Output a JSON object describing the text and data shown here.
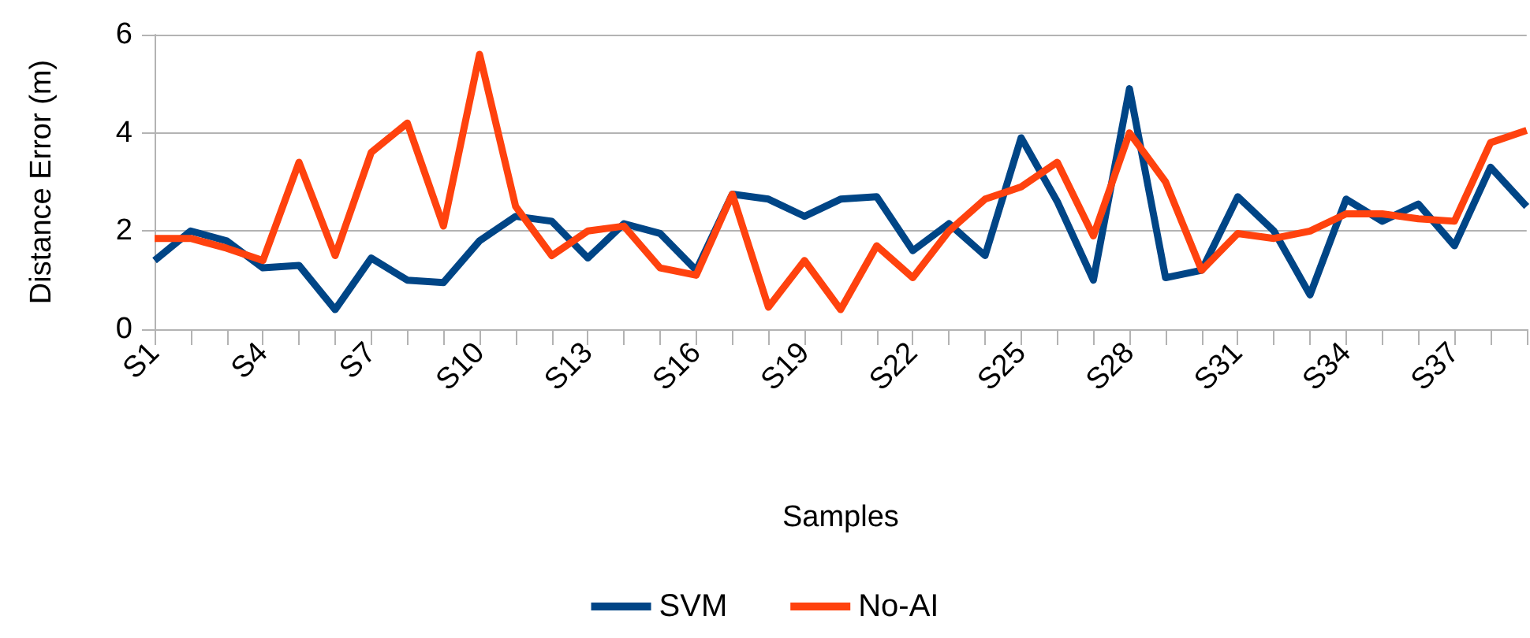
{
  "chart_data": {
    "type": "line",
    "xlabel": "Samples",
    "ylabel": "Distance Error (m)",
    "categories": [
      "S1",
      null,
      null,
      "S4",
      null,
      null,
      "S7",
      null,
      null,
      "S10",
      null,
      null,
      "S13",
      null,
      null,
      "S16",
      null,
      null,
      "S19",
      null,
      null,
      "S22",
      null,
      null,
      "S25",
      null,
      null,
      "S28",
      null,
      null,
      "S31",
      null,
      null,
      "S34",
      null,
      null,
      "S37",
      null,
      null
    ],
    "series": [
      {
        "name": "SVM",
        "color": "#004586",
        "values": [
          1.4,
          2.0,
          1.8,
          1.25,
          1.3,
          0.4,
          1.45,
          1.0,
          0.95,
          1.8,
          2.3,
          2.2,
          1.45,
          2.15,
          1.95,
          1.2,
          2.75,
          2.65,
          2.3,
          2.65,
          2.7,
          1.6,
          2.15,
          1.5,
          3.9,
          2.6,
          1.0,
          4.9,
          1.05,
          1.2,
          2.7,
          2.0,
          0.7,
          2.65,
          2.2,
          2.55,
          1.7,
          3.3,
          2.5
        ]
      },
      {
        "name": "No-AI",
        "color": "#ff420e",
        "values": [
          1.85,
          1.85,
          1.65,
          1.4,
          3.4,
          1.5,
          3.6,
          4.2,
          2.1,
          5.6,
          2.5,
          1.5,
          2.0,
          2.1,
          1.25,
          1.1,
          2.75,
          0.45,
          1.4,
          0.4,
          1.7,
          1.05,
          2.0,
          2.65,
          2.9,
          3.4,
          1.9,
          4.0,
          3.0,
          1.2,
          1.95,
          1.85,
          2.0,
          2.35,
          2.35,
          2.25,
          2.2,
          3.8,
          4.05
        ]
      }
    ],
    "ylim": [
      0,
      6
    ],
    "yticks": [
      0,
      2,
      4,
      6
    ],
    "grid": "y",
    "legend": "bottom",
    "marker": "none",
    "line_style": "solid"
  }
}
